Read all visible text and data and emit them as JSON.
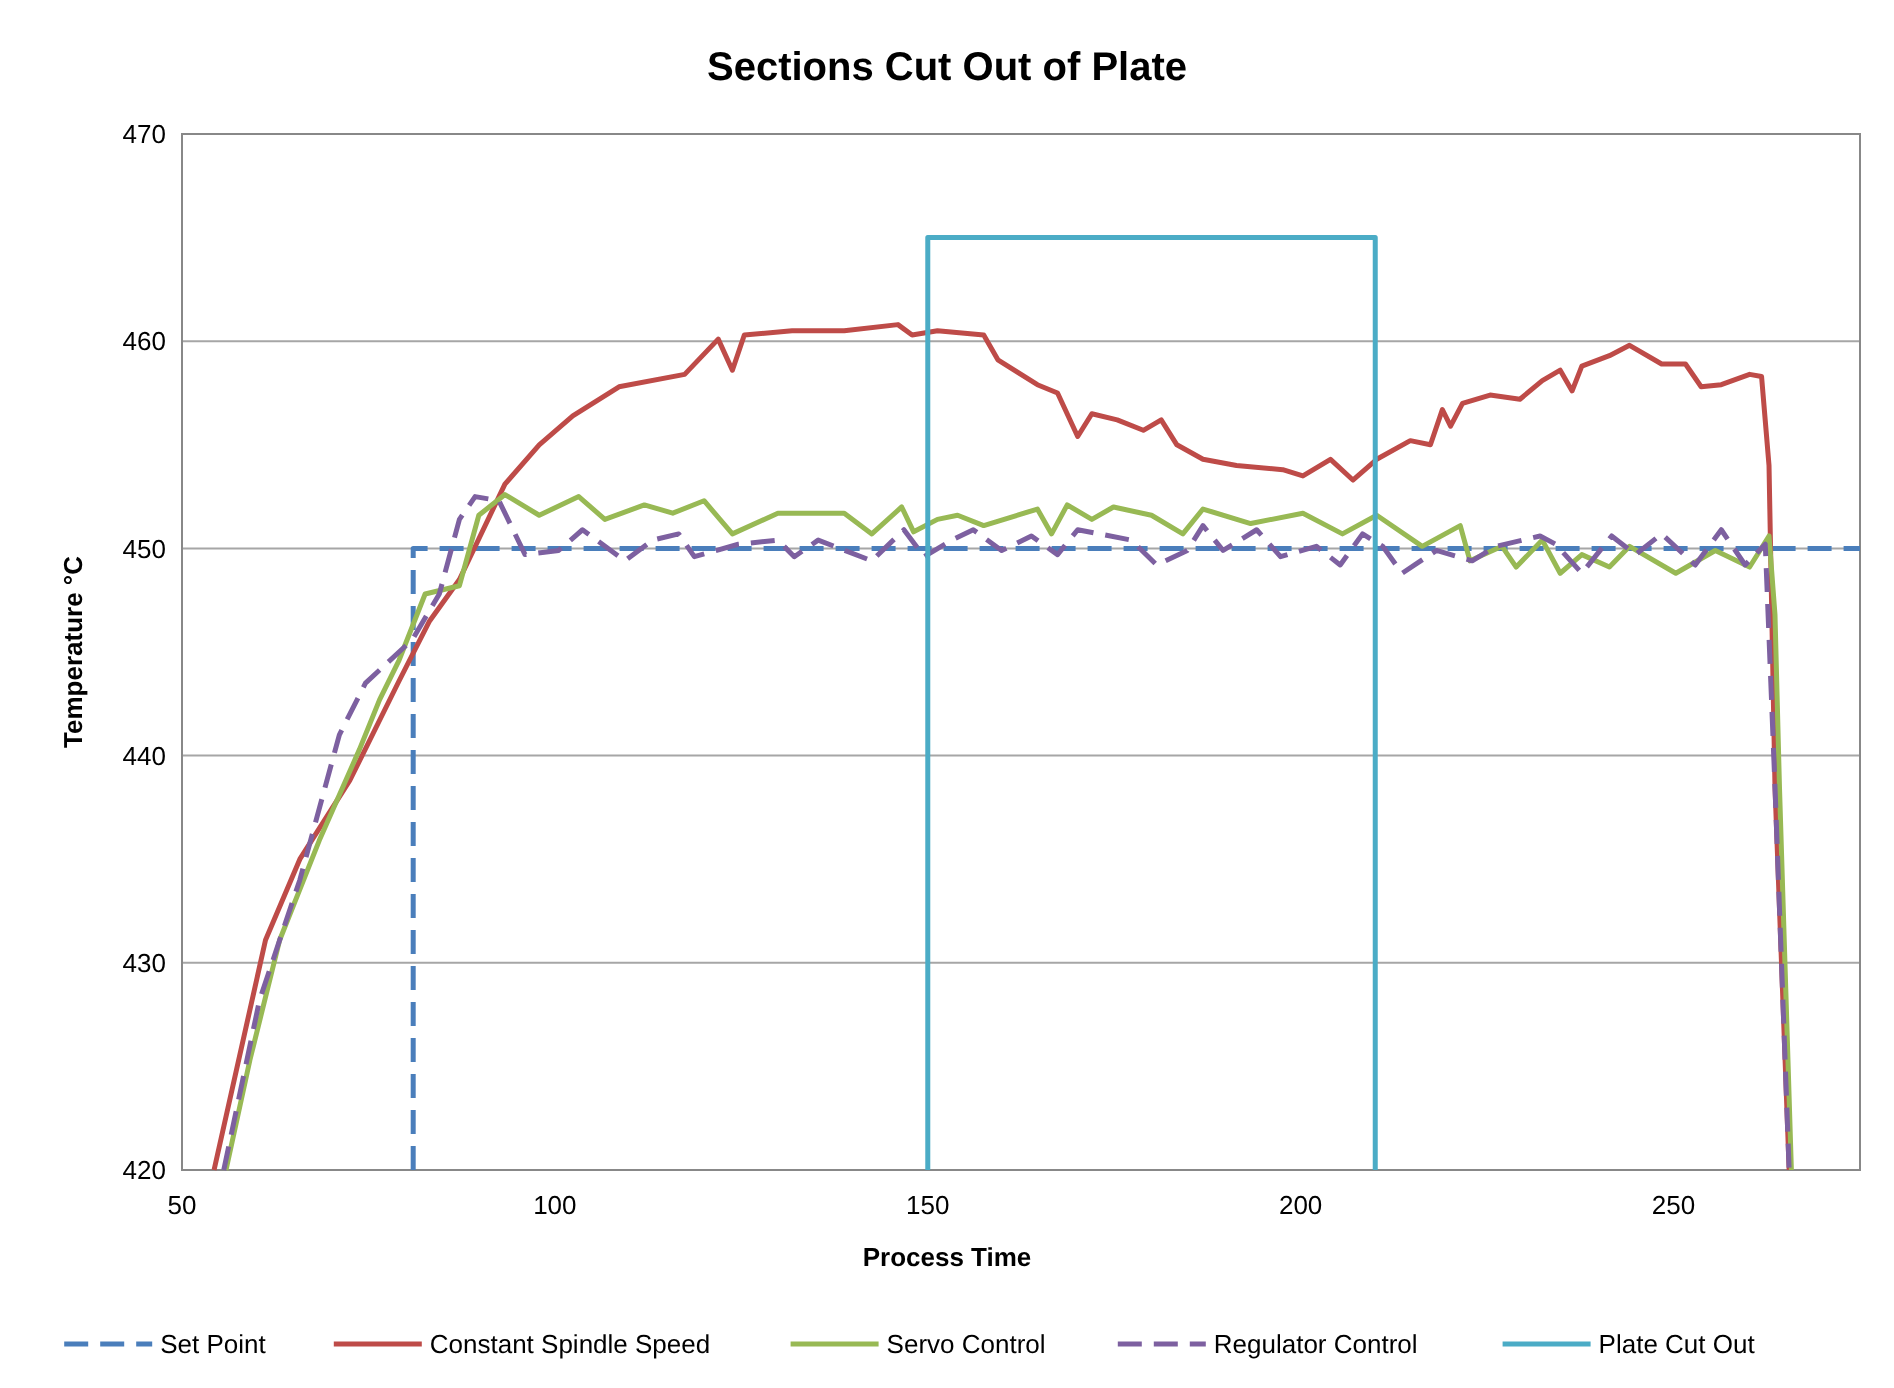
{
  "chart_data": {
    "type": "line",
    "title": "Sections Cut Out of Plate",
    "xlabel": "Process Time",
    "ylabel": "Temperature °C",
    "xlim": [
      50,
      275
    ],
    "xticks": [
      50,
      100,
      150,
      200,
      250
    ],
    "ylim": [
      420,
      470
    ],
    "yticks": [
      420,
      430,
      440,
      450,
      460,
      470
    ],
    "grid": "y",
    "legend": "bottom",
    "marker": "none",
    "series": [
      {
        "name": "Set Point",
        "color": "#4a7ebb",
        "line_style": "dashed",
        "x": [
          81,
          81,
          275
        ],
        "values": [
          420,
          450,
          450
        ]
      },
      {
        "name": "Constant Spindle Speed",
        "color": "#be4b48",
        "line_style": "solid",
        "x": [
          54.3,
          61.2,
          65.8,
          72.5,
          79.1,
          83.2,
          87.2,
          93.3,
          97.9,
          102.4,
          108.6,
          117.4,
          121.9,
          123.8,
          125.4,
          131.8,
          138.8,
          146,
          147.9,
          151.3,
          157.5,
          159.4,
          164.7,
          167.4,
          170.1,
          172,
          175.4,
          178.9,
          181.3,
          183.4,
          186.9,
          191.4,
          197.6,
          200.3,
          204,
          207,
          210.2,
          214.7,
          217.4,
          219,
          220.1,
          221.7,
          225.4,
          229.4,
          232.4,
          234.8,
          236.4,
          237.7,
          241.4,
          244.1,
          248.4,
          251.6,
          253.7,
          256.4,
          260.2,
          261.8,
          262.8,
          263.6,
          265.5
        ],
        "values": [
          420,
          431.1,
          435,
          438.8,
          443.6,
          446.5,
          448.5,
          453.1,
          455,
          456.4,
          457.8,
          458.4,
          460.1,
          458.6,
          460.3,
          460.5,
          460.5,
          460.8,
          460.3,
          460.5,
          460.3,
          459.1,
          457.9,
          457.5,
          455.4,
          456.5,
          456.2,
          455.7,
          456.2,
          455,
          454.3,
          454,
          453.8,
          453.5,
          454.3,
          453.3,
          454.3,
          455.2,
          455,
          456.7,
          455.9,
          457,
          457.4,
          457.2,
          458.1,
          458.6,
          457.6,
          458.8,
          459.3,
          459.8,
          458.9,
          458.9,
          457.8,
          457.9,
          458.4,
          458.3,
          454,
          438.5,
          420
        ]
      },
      {
        "name": "Servo Control",
        "color": "#98b954",
        "line_style": "solid",
        "x": [
          55.9,
          59.1,
          63.1,
          68.4,
          73.8,
          76.5,
          79.1,
          82.6,
          87.2,
          89.8,
          93.3,
          97.9,
          103.2,
          106.7,
          112,
          115.8,
          120,
          123.8,
          129.9,
          138.8,
          142.5,
          146.5,
          148.1,
          151.3,
          154,
          157.5,
          164.7,
          166.6,
          168.7,
          172,
          174.9,
          180,
          184.2,
          186.9,
          193.3,
          200.3,
          205.6,
          210.2,
          216.3,
          221.4,
          222.7,
          227,
          228.9,
          232.4,
          234.8,
          237.7,
          241.4,
          244.1,
          250.3,
          255.6,
          260.2,
          262.8,
          263.6,
          264.2,
          265.8
        ],
        "values": [
          420,
          425.3,
          431.1,
          435.9,
          440.3,
          442.7,
          444.6,
          447.8,
          448.2,
          451.6,
          452.6,
          451.6,
          452.5,
          451.4,
          452.1,
          451.7,
          452.3,
          450.7,
          451.7,
          451.7,
          450.7,
          452,
          450.8,
          451.4,
          451.6,
          451.1,
          451.9,
          450.7,
          452.1,
          451.4,
          452,
          451.6,
          450.7,
          451.9,
          451.2,
          451.7,
          450.7,
          451.6,
          450.1,
          451.1,
          449.4,
          450.1,
          449.1,
          450.4,
          448.8,
          449.7,
          449.1,
          450.1,
          448.8,
          449.9,
          449.1,
          450.6,
          446.8,
          438.5,
          420
        ]
      },
      {
        "name": "Regulator Control",
        "color": "#7d60a0",
        "line_style": "dashed",
        "x": [
          55.6,
          60.4,
          65.8,
          71.1,
          74.6,
          80.9,
          84.5,
          87.2,
          89.3,
          92.5,
          96,
          100.5,
          103.7,
          109.4,
          113.1,
          116.6,
          118.7,
          124.6,
          129.9,
          132.1,
          135.3,
          142.5,
          146.8,
          149.5,
          153.2,
          156.1,
          159.9,
          163.9,
          167.4,
          170.1,
          177.3,
          180.7,
          184.8,
          186.9,
          189.6,
          194.1,
          197.3,
          202.1,
          205.3,
          208.3,
          211,
          213.6,
          218.2,
          223,
          226.2,
          232.1,
          234.2,
          237.7,
          241.7,
          244.9,
          248.4,
          252.9,
          256.4,
          259.6,
          262.3,
          263.6,
          265.5
        ],
        "values": [
          420,
          428.2,
          434,
          441,
          443.5,
          445.6,
          447.8,
          451.4,
          452.5,
          452.3,
          449.7,
          449.9,
          450.9,
          449.4,
          450.4,
          450.7,
          449.6,
          450.2,
          450.4,
          449.6,
          450.4,
          449.4,
          450.9,
          449.6,
          450.4,
          450.9,
          449.9,
          450.6,
          449.7,
          450.9,
          450.4,
          449.2,
          449.9,
          451.1,
          449.9,
          450.9,
          449.6,
          450.1,
          449.2,
          450.7,
          450.1,
          448.8,
          449.9,
          449.4,
          450.1,
          450.6,
          450.2,
          448.8,
          450.6,
          449.7,
          450.7,
          449.2,
          450.9,
          449.2,
          450.2,
          438.5,
          420
        ]
      },
      {
        "name": "Plate Cut Out",
        "color": "#4bacc6",
        "line_style": "solid",
        "x": [
          150,
          150,
          210,
          210
        ],
        "values": [
          420,
          465,
          465,
          420
        ]
      }
    ]
  }
}
